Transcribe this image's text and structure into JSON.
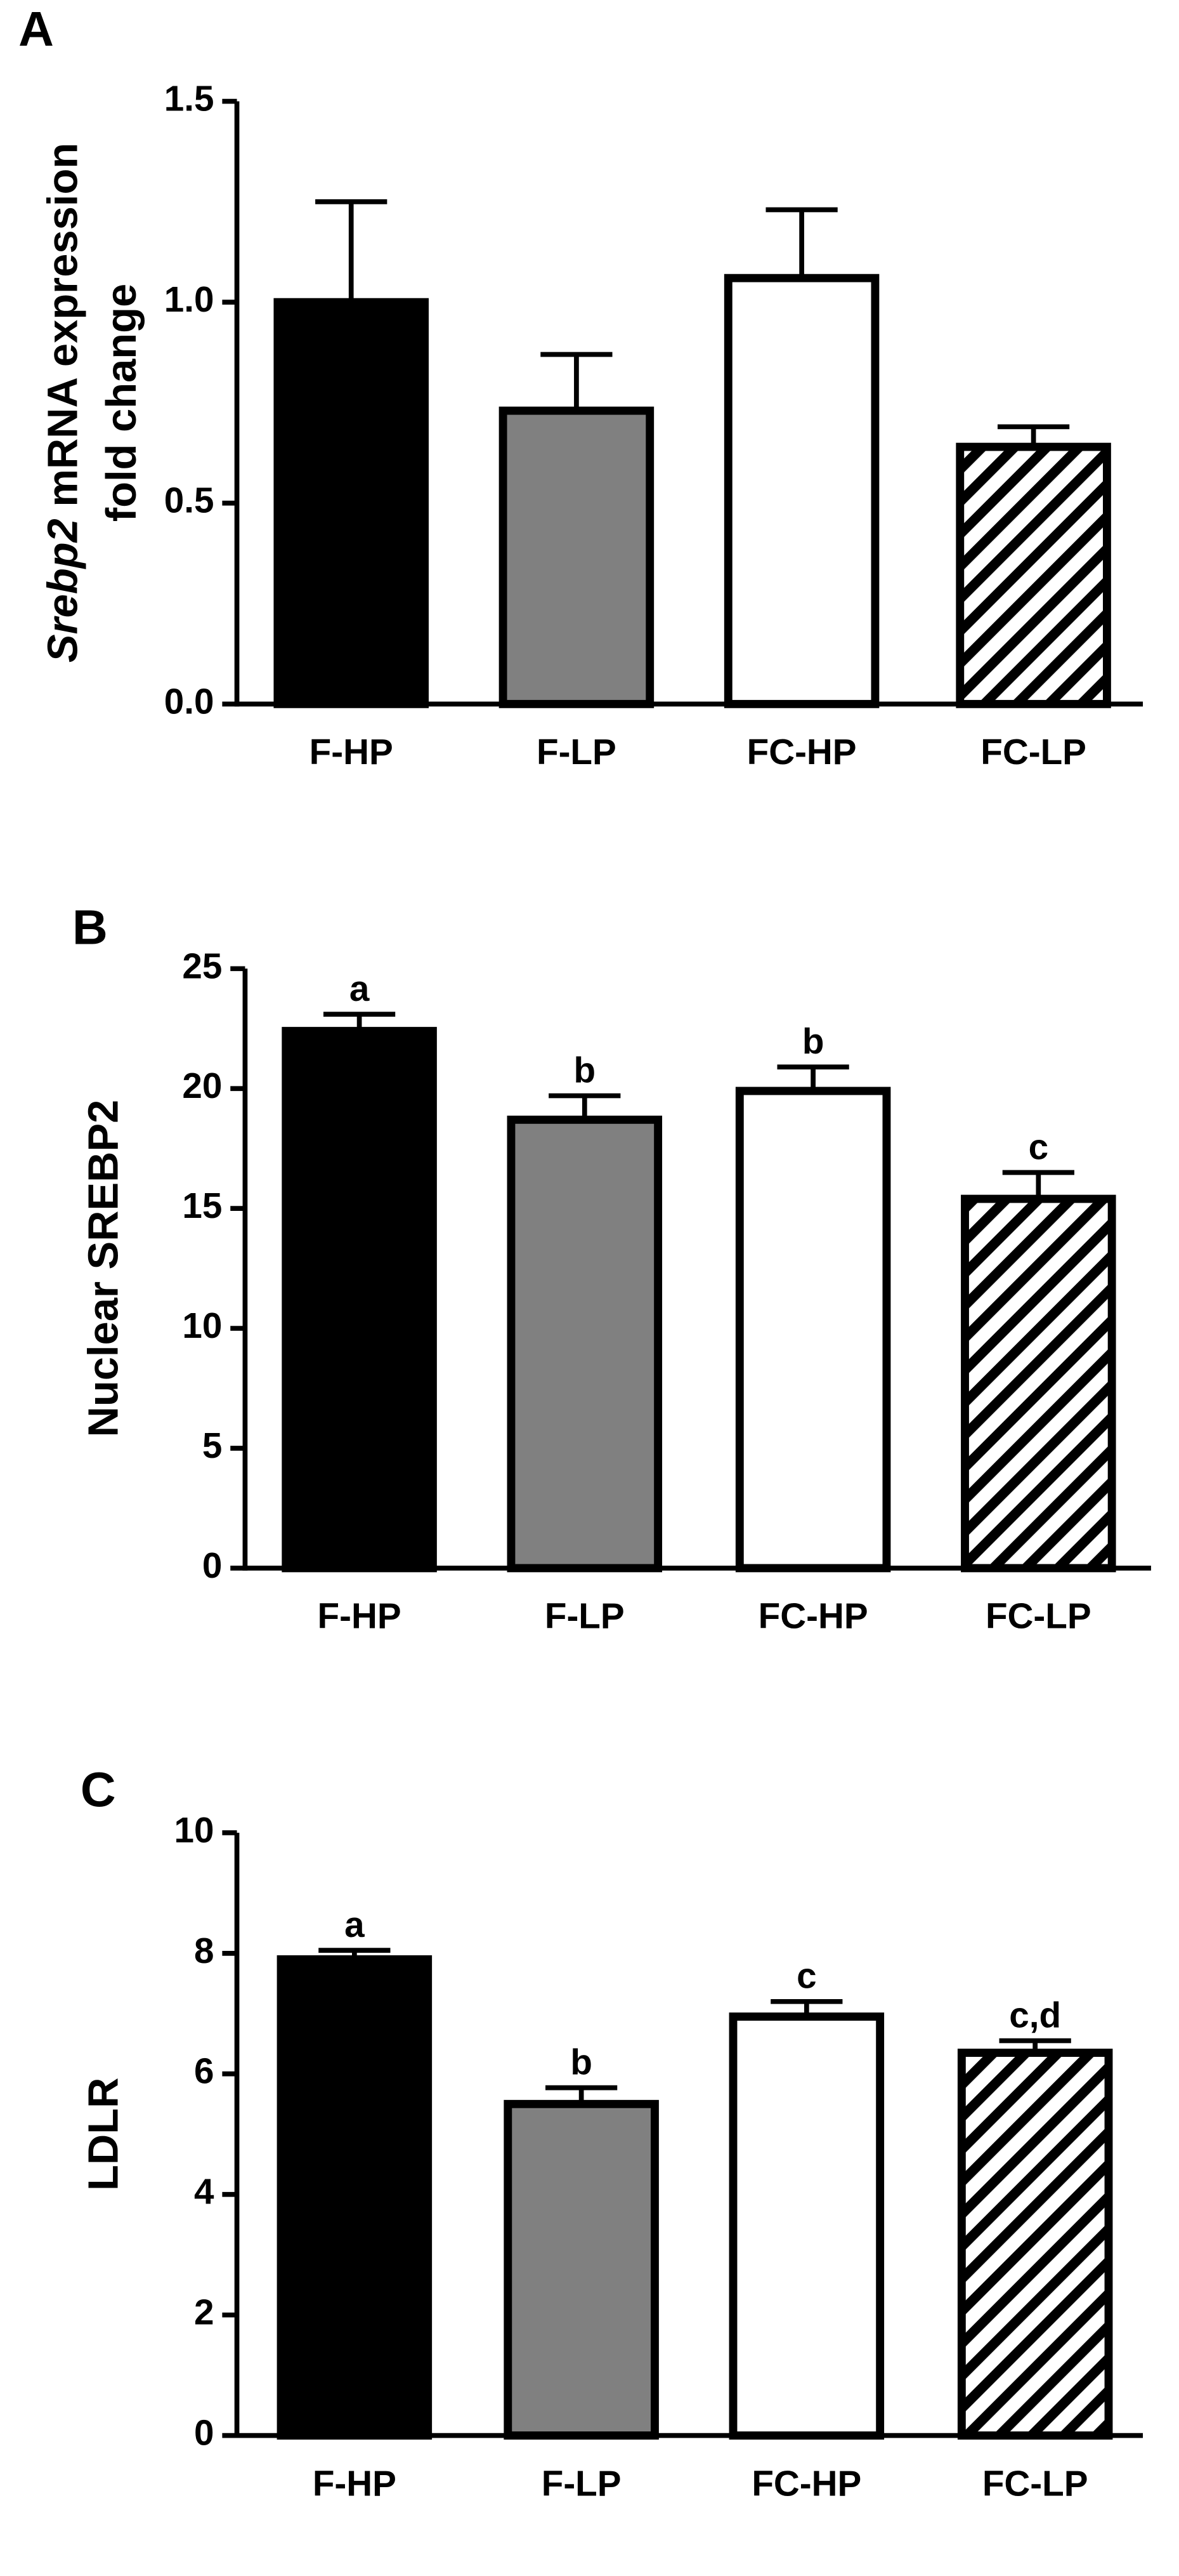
{
  "chart_data": [
    {
      "type": "bar",
      "panel": "A",
      "ylabel": [
        [
          "Srebp2",
          " mRNA expression"
        ],
        [
          "fold change"
        ]
      ],
      "ylabel_italic_lead": true,
      "categories": [
        "F-HP",
        "F-LP",
        "FC-HP",
        "FC-LP"
      ],
      "values": [
        1.0,
        0.73,
        1.06,
        0.64
      ],
      "errors": [
        0.25,
        0.14,
        0.17,
        0.05
      ],
      "colors": [
        "#000000",
        "#808080",
        "#ffffff",
        "#ffffff"
      ],
      "hatch": [
        false,
        false,
        false,
        true
      ],
      "ylim": [
        0,
        1.5
      ],
      "yticks": [
        {
          "value": 0,
          "label": "0.0"
        },
        {
          "value": 0.5,
          "label": "0.5"
        },
        {
          "value": 1,
          "label": "1.0"
        },
        {
          "value": 1.5,
          "label": "1.5"
        }
      ]
    },
    {
      "type": "bar",
      "panel": "B",
      "ylabel": [
        [
          "Nuclear SREBP2"
        ]
      ],
      "ylabel_italic_lead": false,
      "categories": [
        "F-HP",
        "F-LP",
        "FC-HP",
        "FC-LP"
      ],
      "values": [
        22.4,
        18.7,
        19.9,
        15.4
      ],
      "errors": [
        0.7,
        1.0,
        1.0,
        1.1
      ],
      "annotations": [
        "a",
        "b",
        "b",
        "c"
      ],
      "colors": [
        "#000000",
        "#808080",
        "#ffffff",
        "#ffffff"
      ],
      "hatch": [
        false,
        false,
        false,
        true
      ],
      "ylim": [
        0,
        25
      ],
      "yticks": [
        0,
        5,
        10,
        15,
        20,
        25
      ]
    },
    {
      "type": "bar",
      "panel": "C",
      "ylabel": [
        [
          "LDLR"
        ]
      ],
      "ylabel_italic_lead": false,
      "categories": [
        "F-HP",
        "F-LP",
        "FC-HP",
        "FC-LP"
      ],
      "values": [
        7.9,
        5.5,
        6.95,
        6.35
      ],
      "errors": [
        0.15,
        0.27,
        0.25,
        0.2
      ],
      "annotations": [
        "a",
        "b",
        "c",
        "c,d"
      ],
      "colors": [
        "#000000",
        "#808080",
        "#ffffff",
        "#ffffff"
      ],
      "hatch": [
        false,
        false,
        false,
        true
      ],
      "ylim": [
        0,
        10
      ],
      "yticks": [
        0,
        2,
        4,
        6,
        8,
        10
      ]
    }
  ]
}
